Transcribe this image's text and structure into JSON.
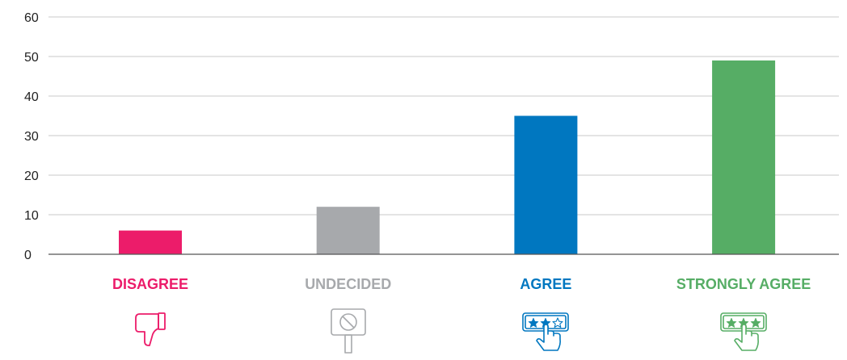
{
  "chart_data": {
    "type": "bar",
    "categories": [
      "DISAGREE",
      "UNDECIDED",
      "AGREE",
      "STRONGLY AGREE"
    ],
    "values": [
      6,
      12,
      35,
      49
    ],
    "colors": [
      "#ec1c6a",
      "#a7a9ac",
      "#0077c0",
      "#56ad65"
    ],
    "icons": [
      "thumbs-down-icon",
      "no-sign-icon",
      "three-star-rating-icon",
      "three-star-rating-icon"
    ],
    "ylim": [
      0,
      60
    ],
    "yticks": [
      "0",
      "10",
      "20",
      "30",
      "40",
      "50",
      "60"
    ],
    "grid": true,
    "legend": "none",
    "title": "",
    "xlabel": "",
    "ylabel": ""
  }
}
